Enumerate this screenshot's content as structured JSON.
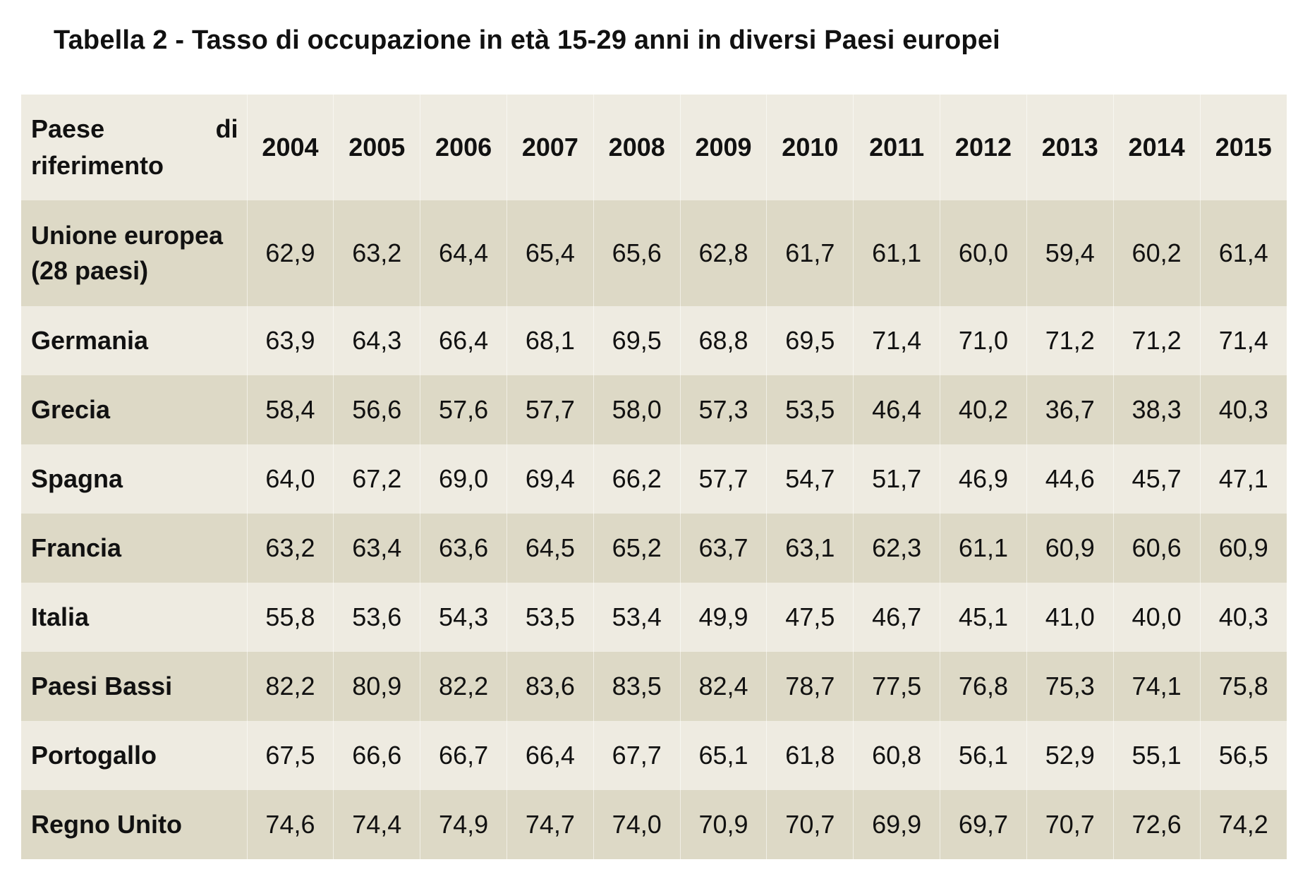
{
  "title": "Tabella 2 - Tasso di occupazione in età 15-29 anni in diversi Paesi europei",
  "header": {
    "country_line1_left": "Paese",
    "country_line1_right": "di",
    "country_line2": "riferimento",
    "years": [
      "2004",
      "2005",
      "2006",
      "2007",
      "2008",
      "2009",
      "2010",
      "2011",
      "2012",
      "2013",
      "2014",
      "2015"
    ]
  },
  "rows": [
    {
      "country_line1": "Unione europea",
      "country_line2": "(28 paesi)",
      "values": [
        "62,9",
        "63,2",
        "64,4",
        "65,4",
        "65,6",
        "62,8",
        "61,7",
        "61,1",
        "60,0",
        "59,4",
        "60,2",
        "61,4"
      ]
    },
    {
      "country_line1": "Germania",
      "values": [
        "63,9",
        "64,3",
        "66,4",
        "68,1",
        "69,5",
        "68,8",
        "69,5",
        "71,4",
        "71,0",
        "71,2",
        "71,2",
        "71,4"
      ]
    },
    {
      "country_line1": "Grecia",
      "values": [
        "58,4",
        "56,6",
        "57,6",
        "57,7",
        "58,0",
        "57,3",
        "53,5",
        "46,4",
        "40,2",
        "36,7",
        "38,3",
        "40,3"
      ]
    },
    {
      "country_line1": "Spagna",
      "values": [
        "64,0",
        "67,2",
        "69,0",
        "69,4",
        "66,2",
        "57,7",
        "54,7",
        "51,7",
        "46,9",
        "44,6",
        "45,7",
        "47,1"
      ]
    },
    {
      "country_line1": "Francia",
      "values": [
        "63,2",
        "63,4",
        "63,6",
        "64,5",
        "65,2",
        "63,7",
        "63,1",
        "62,3",
        "61,1",
        "60,9",
        "60,6",
        "60,9"
      ]
    },
    {
      "country_line1": "Italia",
      "values": [
        "55,8",
        "53,6",
        "54,3",
        "53,5",
        "53,4",
        "49,9",
        "47,5",
        "46,7",
        "45,1",
        "41,0",
        "40,0",
        "40,3"
      ]
    },
    {
      "country_line1": "Paesi Bassi",
      "values": [
        "82,2",
        "80,9",
        "82,2",
        "83,6",
        "83,5",
        "82,4",
        "78,7",
        "77,5",
        "76,8",
        "75,3",
        "74,1",
        "75,8"
      ]
    },
    {
      "country_line1": "Portogallo",
      "values": [
        "67,5",
        "66,6",
        "66,7",
        "66,4",
        "67,7",
        "65,1",
        "61,8",
        "60,8",
        "56,1",
        "52,9",
        "55,1",
        "56,5"
      ]
    },
    {
      "country_line1": "Regno Unito",
      "values": [
        "74,6",
        "74,4",
        "74,9",
        "74,7",
        "74,0",
        "70,9",
        "70,7",
        "69,9",
        "69,7",
        "70,7",
        "72,6",
        "74,2"
      ]
    }
  ]
}
